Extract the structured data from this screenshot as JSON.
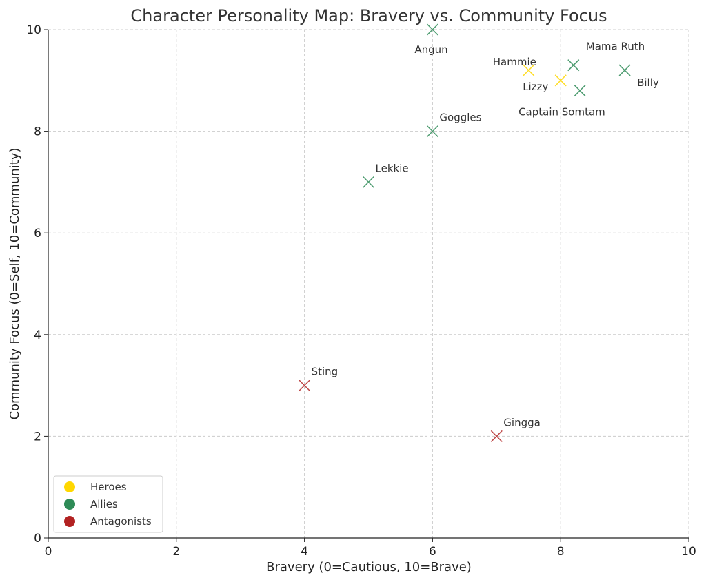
{
  "chart_data": {
    "type": "scatter",
    "title": "Character Personality Map: Bravery vs. Community Focus",
    "xlabel": "Bravery (0=Cautious, 10=Brave)",
    "ylabel": "Community Focus (0=Self, 10=Community)",
    "xlim": [
      0,
      10
    ],
    "ylim": [
      0,
      10
    ],
    "xticks": [
      "0",
      "2",
      "4",
      "6",
      "8",
      "10"
    ],
    "yticks": [
      "0",
      "2",
      "4",
      "6",
      "8",
      "10"
    ],
    "grid": true,
    "legend_position": "bottom-left",
    "groups": [
      {
        "name": "Heroes",
        "color": "#FFD700"
      },
      {
        "name": "Allies",
        "color": "#2E8B57"
      },
      {
        "name": "Antagonists",
        "color": "#B22222"
      }
    ],
    "points": [
      {
        "name": "Hammie",
        "group": "Heroes",
        "x": 7.5,
        "y": 9.2
      },
      {
        "name": "Lizzy",
        "group": "Heroes",
        "x": 8.0,
        "y": 9.0
      },
      {
        "name": "Angun",
        "group": "Allies",
        "x": 6.0,
        "y": 10.0
      },
      {
        "name": "Mama Ruth",
        "group": "Allies",
        "x": 8.2,
        "y": 9.3
      },
      {
        "name": "Captain Somtam",
        "group": "Allies",
        "x": 8.3,
        "y": 8.8
      },
      {
        "name": "Billy",
        "group": "Allies",
        "x": 9.0,
        "y": 9.2
      },
      {
        "name": "Goggles",
        "group": "Allies",
        "x": 6.0,
        "y": 8.0
      },
      {
        "name": "Lekkie",
        "group": "Allies",
        "x": 5.0,
        "y": 7.0
      },
      {
        "name": "Sting",
        "group": "Antagonists",
        "x": 4.0,
        "y": 3.0
      },
      {
        "name": "Gingga",
        "group": "Antagonists",
        "x": 7.0,
        "y": 2.0
      }
    ]
  }
}
